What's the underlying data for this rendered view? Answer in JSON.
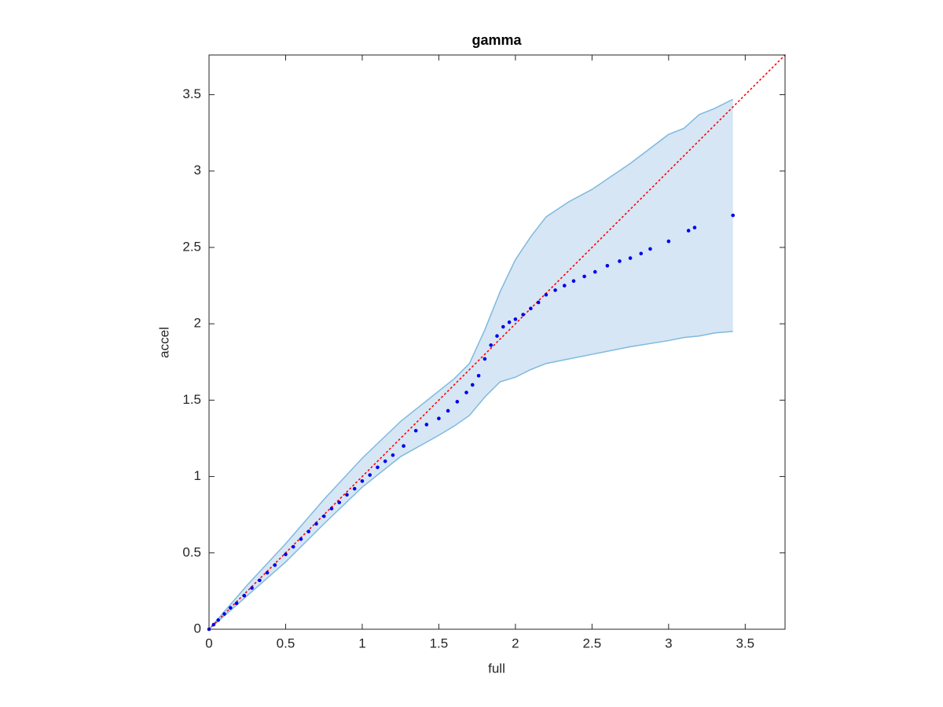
{
  "chart_data": {
    "type": "scatter",
    "title": "gamma",
    "xlabel": "full",
    "ylabel": "accel",
    "xlim": [
      0,
      3.76
    ],
    "ylim": [
      0,
      3.76
    ],
    "xticks": [
      0,
      0.5,
      1,
      1.5,
      2,
      2.5,
      3,
      3.5
    ],
    "yticks": [
      0,
      0.5,
      1,
      1.5,
      2,
      2.5,
      3,
      3.5
    ],
    "band": {
      "color": "#d6e6f4",
      "edge_color": "#80b9de",
      "x": [
        0,
        0.25,
        0.5,
        0.75,
        1.0,
        1.25,
        1.5,
        1.6,
        1.7,
        1.8,
        1.9,
        2.0,
        2.1,
        2.2,
        2.35,
        2.5,
        2.75,
        3.0,
        3.1,
        3.2,
        3.3,
        3.42
      ],
      "upper": [
        0,
        0.29,
        0.56,
        0.85,
        1.12,
        1.36,
        1.56,
        1.64,
        1.74,
        1.96,
        2.21,
        2.42,
        2.57,
        2.7,
        2.8,
        2.88,
        3.05,
        3.24,
        3.28,
        3.37,
        3.41,
        3.47
      ],
      "lower": [
        0,
        0.22,
        0.44,
        0.69,
        0.93,
        1.13,
        1.27,
        1.33,
        1.4,
        1.52,
        1.62,
        1.65,
        1.7,
        1.74,
        1.77,
        1.8,
        1.85,
        1.89,
        1.91,
        1.92,
        1.94,
        1.95
      ]
    },
    "reference_line": {
      "color": "#ff0000",
      "x": [
        0,
        3.76
      ],
      "y": [
        0,
        3.76
      ]
    },
    "points": {
      "color": "#0000ee",
      "x": [
        0,
        0.03,
        0.06,
        0.1,
        0.14,
        0.18,
        0.23,
        0.28,
        0.33,
        0.38,
        0.43,
        0.5,
        0.55,
        0.6,
        0.65,
        0.7,
        0.75,
        0.8,
        0.85,
        0.9,
        0.95,
        1.0,
        1.05,
        1.1,
        1.15,
        1.2,
        1.27,
        1.35,
        1.42,
        1.5,
        1.56,
        1.62,
        1.68,
        1.72,
        1.76,
        1.8,
        1.84,
        1.88,
        1.92,
        1.96,
        2.0,
        2.05,
        2.1,
        2.15,
        2.2,
        2.26,
        2.32,
        2.38,
        2.45,
        2.52,
        2.6,
        2.68,
        2.75,
        2.82,
        2.88,
        3.0,
        3.13,
        3.17,
        3.42
      ],
      "y": [
        0,
        0.03,
        0.06,
        0.1,
        0.14,
        0.17,
        0.22,
        0.27,
        0.32,
        0.37,
        0.42,
        0.49,
        0.54,
        0.59,
        0.64,
        0.69,
        0.74,
        0.79,
        0.83,
        0.88,
        0.92,
        0.97,
        1.01,
        1.06,
        1.1,
        1.14,
        1.2,
        1.3,
        1.34,
        1.38,
        1.43,
        1.49,
        1.55,
        1.6,
        1.66,
        1.77,
        1.86,
        1.92,
        1.98,
        2.01,
        2.03,
        2.06,
        2.1,
        2.14,
        2.19,
        2.22,
        2.25,
        2.28,
        2.31,
        2.34,
        2.38,
        2.41,
        2.43,
        2.46,
        2.49,
        2.54,
        2.61,
        2.63,
        2.71
      ]
    }
  }
}
